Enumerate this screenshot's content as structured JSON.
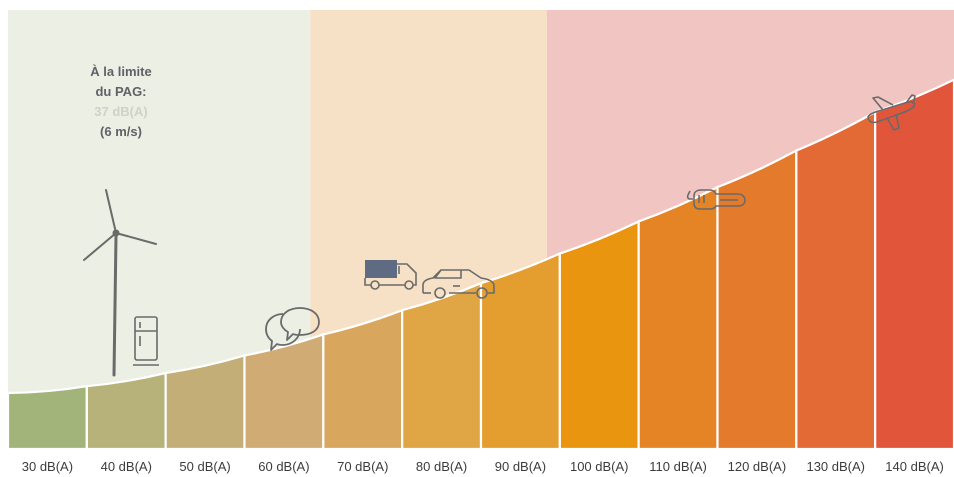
{
  "chart_data": {
    "type": "bar",
    "categories": [
      "30 dB(A)",
      "40 dB(A)",
      "50 dB(A)",
      "60 dB(A)",
      "70 dB(A)",
      "80 dB(A)",
      "90 dB(A)",
      "100 dB(A)",
      "110 dB(A)",
      "120 dB(A)",
      "130 dB(A)",
      "140 dB(A)"
    ],
    "values": [
      30,
      40,
      50,
      60,
      70,
      80,
      90,
      100,
      110,
      120,
      130,
      140
    ],
    "ylim": [
      0,
      160
    ],
    "grid": false,
    "zones": [
      {
        "from": 30,
        "to": 70,
        "color": "#ecefe3"
      },
      {
        "from": 70,
        "to": 100,
        "color": "#f7e1c6"
      },
      {
        "from": 100,
        "to": 140,
        "color": "#f1c6c2"
      }
    ],
    "icons": [
      {
        "name": "wind-turbine-icon",
        "category": "30 dB(A)"
      },
      {
        "name": "refrigerator-icon",
        "category": "40 dB(A)"
      },
      {
        "name": "speech-bubbles-icon",
        "category": "60 dB(A)"
      },
      {
        "name": "truck-icon",
        "category": "70 dB(A)"
      },
      {
        "name": "car-icon",
        "category": "80 dB(A)"
      },
      {
        "name": "chainsaw-icon",
        "category": "120 dB(A)"
      },
      {
        "name": "airplane-icon",
        "category": "140 dB(A)"
      }
    ],
    "bar_colors": [
      "#a3b47a",
      "#b6b27a",
      "#c4ae78",
      "#d0ab74",
      "#d9a65d",
      "#e0a545",
      "#e49e2f",
      "#e9950f",
      "#e48424",
      "#e37a2c",
      "#e36a34",
      "#e1553a"
    ]
  },
  "annotation": {
    "line1": "À la limite",
    "line2": "du PAG:",
    "line3": "37 dB(A)",
    "line4": "(6 m/s)"
  }
}
